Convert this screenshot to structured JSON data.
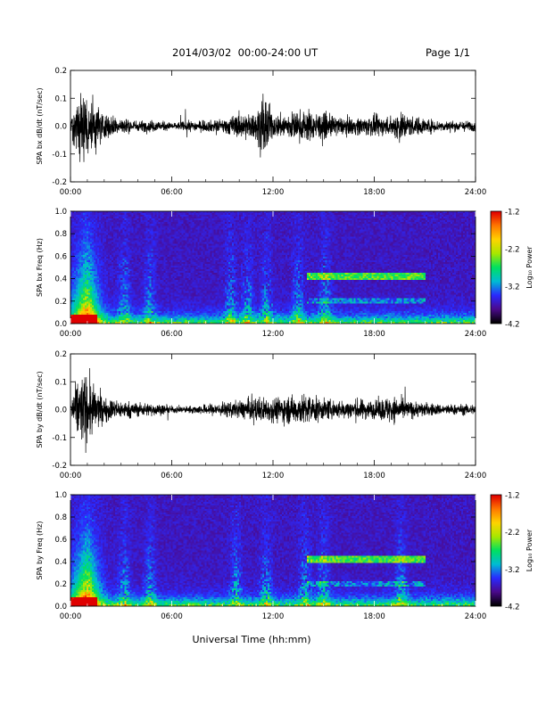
{
  "header": {
    "title": "2014/03/02  00:00-24:00 UT",
    "page": "Page 1/1"
  },
  "xlabel": "Universal Time (hh:mm)",
  "x_ticks": [
    "00:00",
    "06:00",
    "12:00",
    "18:00",
    "24:00"
  ],
  "colorbar": {
    "label": "Log₁₀ Power",
    "ticks": [
      "-1.2",
      "-2.2",
      "-3.2",
      "-4.2"
    ],
    "range": [
      -4.2,
      -1.2
    ],
    "colors": [
      "#000000",
      "#4b0a8c",
      "#2a2aff",
      "#00bcd4",
      "#00e060",
      "#a8e800",
      "#ffd400",
      "#ff7800",
      "#e00000"
    ]
  },
  "chart_data": [
    {
      "type": "line",
      "title": "",
      "ylabel": "SPA bx dB/dt (nT/sec)",
      "xlabel": "",
      "xlim": [
        0,
        24
      ],
      "ylim": [
        -0.2,
        0.2
      ],
      "y_ticks": [
        "0.2",
        "0.1",
        "0.0",
        "-0.1",
        "-0.2"
      ],
      "envelope": [
        [
          0.0,
          0.05
        ],
        [
          0.5,
          0.2
        ],
        [
          1.0,
          0.2
        ],
        [
          1.5,
          0.15
        ],
        [
          2.0,
          0.07
        ],
        [
          3.0,
          0.05
        ],
        [
          4.0,
          0.03
        ],
        [
          5.0,
          0.035
        ],
        [
          6.0,
          0.02
        ],
        [
          7.0,
          0.03
        ],
        [
          8.0,
          0.03
        ],
        [
          9.0,
          0.04
        ],
        [
          10.0,
          0.07
        ],
        [
          11.0,
          0.08
        ],
        [
          11.5,
          0.2
        ],
        [
          12.0,
          0.06
        ],
        [
          13.0,
          0.08
        ],
        [
          14.0,
          0.09
        ],
        [
          15.0,
          0.07
        ],
        [
          16.0,
          0.05
        ],
        [
          17.0,
          0.05
        ],
        [
          18.0,
          0.06
        ],
        [
          19.0,
          0.05
        ],
        [
          19.5,
          0.1
        ],
        [
          20.0,
          0.06
        ],
        [
          22.0,
          0.03
        ],
        [
          24.0,
          0.03
        ]
      ]
    },
    {
      "type": "heatmap",
      "title": "",
      "ylabel": "SPA bx Freq (Hz)",
      "xlabel": "",
      "xlim": [
        0,
        24
      ],
      "ylim": [
        0.0,
        1.0
      ],
      "y_ticks": [
        "1.0",
        "0.8",
        "0.6",
        "0.4",
        "0.2",
        "0.0"
      ]
    },
    {
      "type": "line",
      "title": "",
      "ylabel": "SPA by dB/dt (nT/sec)",
      "xlabel": "",
      "xlim": [
        0,
        24
      ],
      "ylim": [
        -0.2,
        0.2
      ],
      "y_ticks": [
        "0.2",
        "0.1",
        "0.0",
        "-0.1",
        "-0.2"
      ],
      "envelope": [
        [
          0.0,
          0.05
        ],
        [
          0.5,
          0.2
        ],
        [
          1.0,
          0.2
        ],
        [
          1.5,
          0.12
        ],
        [
          2.0,
          0.07
        ],
        [
          3.0,
          0.05
        ],
        [
          4.0,
          0.04
        ],
        [
          5.0,
          0.035
        ],
        [
          6.0,
          0.02
        ],
        [
          7.0,
          0.02
        ],
        [
          8.0,
          0.03
        ],
        [
          9.0,
          0.04
        ],
        [
          10.0,
          0.05
        ],
        [
          11.0,
          0.07
        ],
        [
          12.0,
          0.07
        ],
        [
          13.0,
          0.08
        ],
        [
          14.0,
          0.09
        ],
        [
          15.0,
          0.06
        ],
        [
          16.0,
          0.05
        ],
        [
          17.0,
          0.06
        ],
        [
          18.0,
          0.05
        ],
        [
          19.0,
          0.08
        ],
        [
          20.0,
          0.05
        ],
        [
          22.0,
          0.03
        ],
        [
          24.0,
          0.03
        ]
      ]
    },
    {
      "type": "heatmap",
      "title": "",
      "ylabel": "SPA by Freq (Hz)",
      "xlabel": "",
      "xlim": [
        0,
        24
      ],
      "ylim": [
        0.0,
        1.0
      ],
      "y_ticks": [
        "1.0",
        "0.8",
        "0.6",
        "0.4",
        "0.2",
        "0.0"
      ]
    }
  ]
}
